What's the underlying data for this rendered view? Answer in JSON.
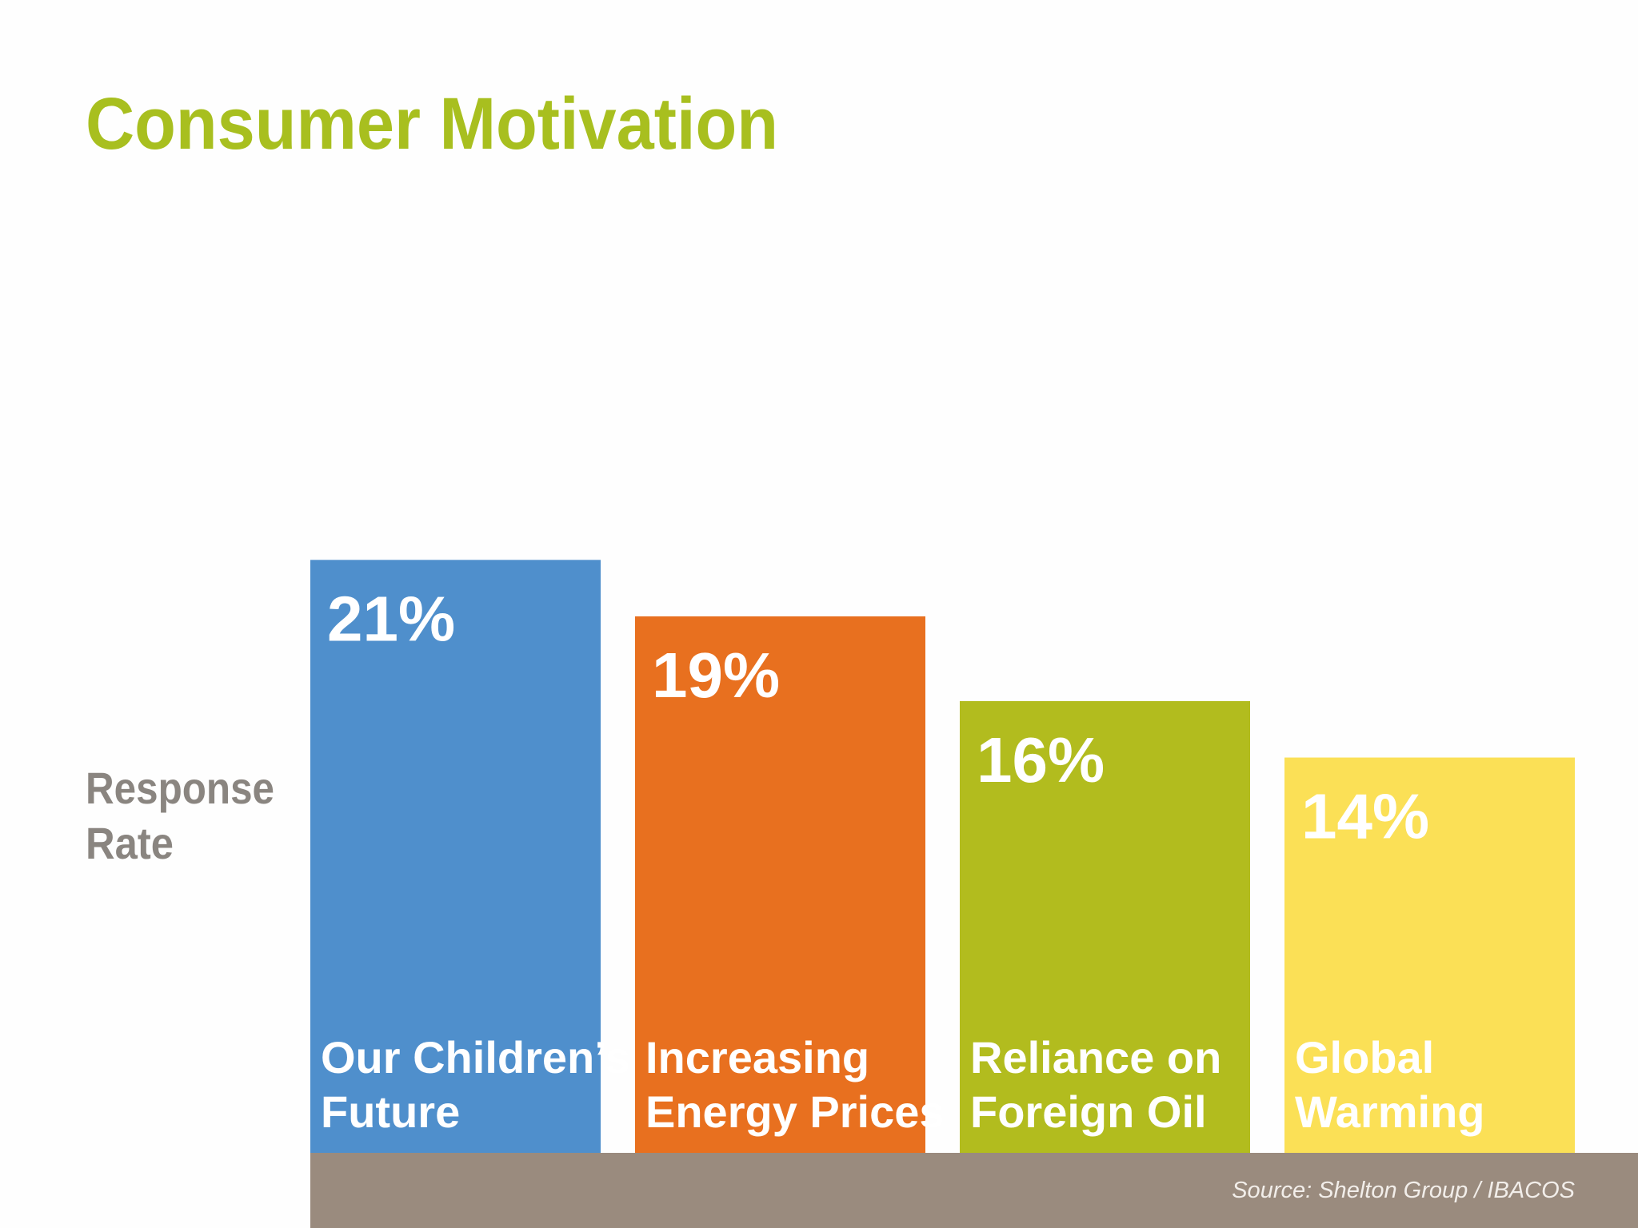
{
  "chart_data": {
    "type": "bar",
    "title": "Consumer Motivation",
    "ylabel": [
      "Response",
      "Rate"
    ],
    "categories": [
      [
        "Our Children’s",
        "Future"
      ],
      [
        "Increasing",
        "Energy Prices"
      ],
      [
        "Reliance on",
        "Foreign Oil"
      ],
      [
        "Global",
        "Warming"
      ]
    ],
    "values": [
      21,
      19,
      16,
      14
    ],
    "value_labels": [
      "21%",
      "19%",
      "16%",
      "14%"
    ],
    "colors": [
      "#4f8fcc",
      "#e8701f",
      "#b2bc1e",
      "#fbe056"
    ],
    "ylim": [
      0,
      22
    ],
    "source": "Source: Shelton Group / IBACOS"
  }
}
